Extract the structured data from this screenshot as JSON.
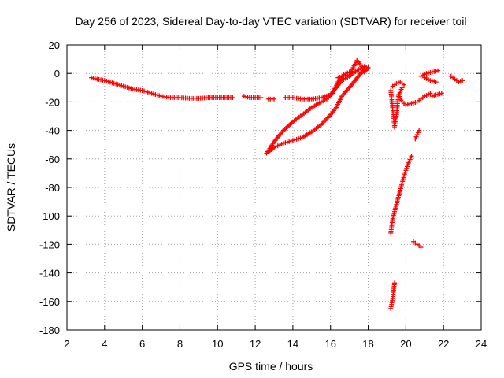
{
  "chart_data": {
    "type": "scatter",
    "title": "Day 256 of 2023, Sidereal Day-to-day VTEC variation (SDTVAR) for receiver toil",
    "xlabel": "GPS time / hours",
    "ylabel": "SDTVAR / TECUs",
    "xlim": [
      2,
      24
    ],
    "ylim": [
      -180,
      20
    ],
    "xticks": [
      2,
      4,
      6,
      8,
      10,
      12,
      14,
      16,
      18,
      20,
      22,
      24
    ],
    "yticks": [
      20,
      0,
      -20,
      -40,
      -60,
      -80,
      -100,
      -120,
      -140,
      -160,
      -180
    ],
    "grid": true,
    "marker": "plus",
    "color": "#ff0000",
    "series": [
      {
        "segments": [
          [
            [
              3.3,
              -3
            ],
            [
              3.6,
              -4
            ],
            [
              4.0,
              -5
            ],
            [
              4.5,
              -7
            ],
            [
              5.0,
              -9
            ],
            [
              5.5,
              -11
            ],
            [
              6.0,
              -12
            ],
            [
              6.5,
              -14
            ],
            [
              7.0,
              -16
            ],
            [
              7.5,
              -17
            ],
            [
              8.0,
              -17
            ],
            [
              8.5,
              -17.5
            ],
            [
              9.0,
              -17.5
            ],
            [
              9.5,
              -17
            ],
            [
              10.0,
              -17
            ],
            [
              10.5,
              -17
            ],
            [
              10.8,
              -17
            ]
          ],
          [
            [
              11.4,
              -16
            ],
            [
              11.7,
              -17
            ],
            [
              12.0,
              -17
            ],
            [
              12.3,
              -17
            ]
          ],
          [
            [
              12.7,
              -18
            ],
            [
              13.0,
              -18
            ]
          ],
          [
            [
              13.6,
              -17
            ],
            [
              14.0,
              -17
            ],
            [
              14.5,
              -18
            ],
            [
              15.0,
              -18
            ],
            [
              15.5,
              -17
            ],
            [
              16.0,
              -15
            ],
            [
              16.3,
              -10
            ],
            [
              16.6,
              -5
            ],
            [
              17.0,
              -2
            ],
            [
              17.4,
              2
            ],
            [
              17.8,
              5
            ],
            [
              18.0,
              4
            ]
          ],
          [
            [
              12.6,
              -56
            ],
            [
              13.0,
              -48
            ],
            [
              13.5,
              -40
            ],
            [
              14.0,
              -34
            ],
            [
              14.5,
              -29
            ],
            [
              15.0,
              -24
            ],
            [
              15.5,
              -20
            ],
            [
              15.8,
              -18
            ],
            [
              16.1,
              -14
            ],
            [
              16.4,
              -6
            ],
            [
              16.7,
              -1
            ],
            [
              17.0,
              1
            ]
          ],
          [
            [
              12.7,
              -55
            ],
            [
              13.0,
              -52
            ],
            [
              13.5,
              -49
            ],
            [
              14.0,
              -47
            ],
            [
              14.5,
              -45
            ],
            [
              15.0,
              -41
            ],
            [
              15.5,
              -36
            ],
            [
              16.0,
              -29
            ],
            [
              16.3,
              -24
            ],
            [
              16.6,
              -16
            ],
            [
              17.0,
              -10
            ],
            [
              17.3,
              -5
            ],
            [
              17.6,
              0
            ],
            [
              17.9,
              3
            ]
          ],
          [
            [
              16.4,
              -3
            ],
            [
              16.7,
              -2
            ],
            [
              17.0,
              -1
            ],
            [
              17.2,
              4
            ],
            [
              17.4,
              9
            ],
            [
              17.6,
              6
            ],
            [
              17.8,
              1
            ],
            [
              18.0,
              4
            ]
          ],
          [
            [
              19.2,
              -12
            ],
            [
              19.3,
              -25
            ],
            [
              19.4,
              -38
            ],
            [
              19.5,
              -30
            ],
            [
              19.6,
              -16
            ],
            [
              19.8,
              -10
            ]
          ],
          [
            [
              19.3,
              -9
            ],
            [
              19.5,
              -7
            ],
            [
              19.7,
              -6
            ],
            [
              19.9,
              -8
            ]
          ],
          [
            [
              19.6,
              -15
            ],
            [
              19.8,
              -20
            ],
            [
              20.0,
              -22
            ],
            [
              20.3,
              -21
            ],
            [
              20.6,
              -20
            ],
            [
              20.8,
              -18
            ],
            [
              21.0,
              -16
            ],
            [
              21.3,
              -14
            ]
          ],
          [
            [
              21.4,
              -16
            ],
            [
              21.6,
              -15
            ],
            [
              21.9,
              -14
            ]
          ],
          [
            [
              20.8,
              -2
            ],
            [
              21.1,
              0
            ],
            [
              21.4,
              1
            ],
            [
              21.7,
              2
            ]
          ],
          [
            [
              21.0,
              -3
            ],
            [
              21.3,
              -5
            ],
            [
              21.6,
              -6
            ]
          ],
          [
            [
              22.4,
              -2
            ],
            [
              22.6,
              -4
            ],
            [
              22.8,
              -6
            ],
            [
              23.0,
              -5
            ]
          ],
          [
            [
              19.2,
              -112
            ],
            [
              19.3,
              -102
            ],
            [
              19.5,
              -92
            ],
            [
              19.7,
              -82
            ],
            [
              19.9,
              -72
            ],
            [
              20.1,
              -64
            ],
            [
              20.3,
              -58
            ]
          ],
          [
            [
              20.5,
              -46
            ],
            [
              20.6,
              -43
            ],
            [
              20.7,
              -40
            ]
          ],
          [
            [
              20.4,
              -118
            ],
            [
              20.6,
              -120
            ],
            [
              20.8,
              -122
            ]
          ],
          [
            [
              19.2,
              -165
            ],
            [
              19.3,
              -158
            ],
            [
              19.35,
              -152
            ],
            [
              19.4,
              -147
            ]
          ]
        ]
      }
    ]
  }
}
